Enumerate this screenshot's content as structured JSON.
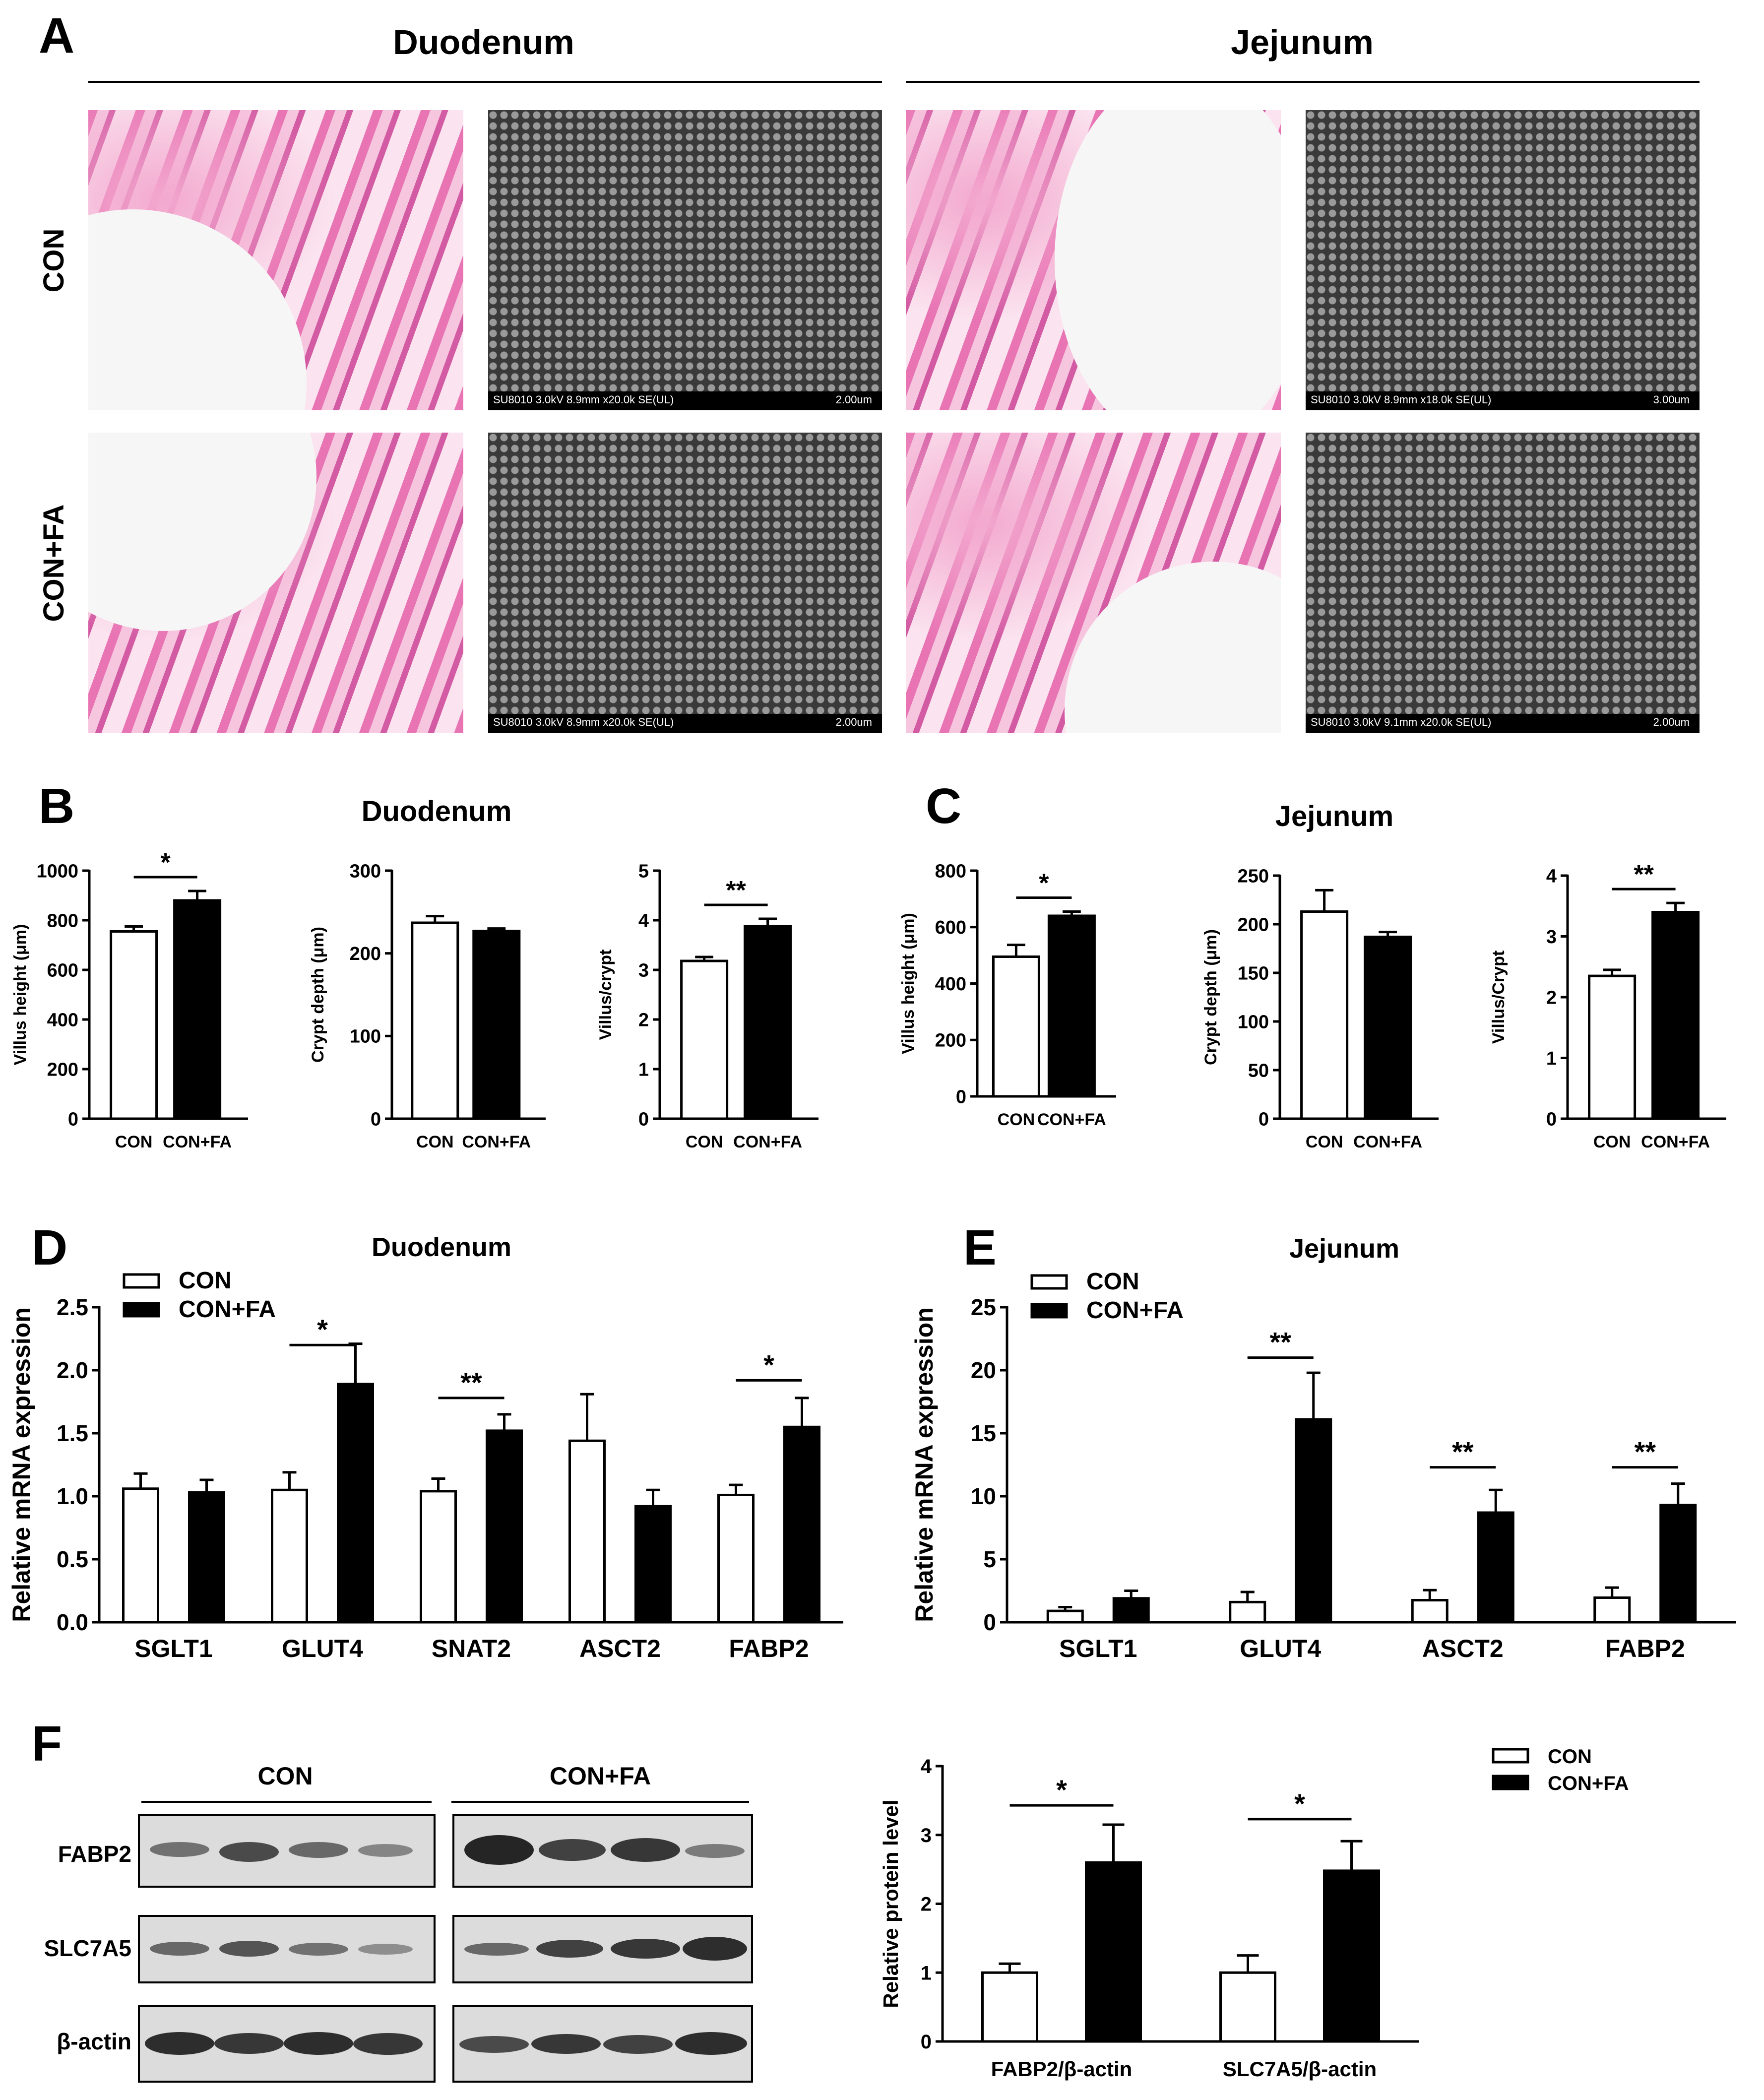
{
  "panel_letters": [
    "A",
    "B",
    "C",
    "D",
    "E",
    "F"
  ],
  "panelA": {
    "col_headers": [
      "Duodenum",
      "Jejunum"
    ],
    "row_labels": [
      "CON",
      "CON+FA"
    ],
    "sem_labels": [
      {
        "info": "SU8010 3.0kV 8.9mm x20.0k SE(UL)",
        "scale": "2.00um"
      },
      {
        "info": "SU8010 3.0kV 8.9mm x18.0k SE(UL)",
        "scale": "3.00um"
      },
      {
        "info": "SU8010 3.0kV 8.9mm x20.0k SE(UL)",
        "scale": "2.00um"
      },
      {
        "info": "SU8010 3.0kV 9.1mm x20.0k SE(UL)",
        "scale": "2.00um"
      }
    ]
  },
  "panelB_title": "Duodenum",
  "panelC_title": "Jejunum",
  "panelD_title": "Duodenum",
  "panelE_title": "Jejunum",
  "panelF": {
    "group_labels": [
      "CON",
      "CON+FA"
    ],
    "row_labels": [
      "FABP2",
      "SLC7A5",
      "β-actin"
    ]
  },
  "colors": {
    "con_fill": "#ffffff",
    "fa_fill": "#000000",
    "stroke": "#000000"
  },
  "chart_data": [
    {
      "id": "B1",
      "type": "bar",
      "categories": [
        "CON",
        "CON+FA"
      ],
      "values": [
        755,
        880
      ],
      "errors": [
        20,
        38
      ],
      "ylabel": "Villus height (μm)",
      "ylim": [
        0,
        1000
      ],
      "yticks": [
        0,
        200,
        400,
        600,
        800,
        1000
      ],
      "sig": [
        {
          "from": 0,
          "to": 1,
          "label": "*"
        }
      ]
    },
    {
      "id": "B2",
      "type": "bar",
      "categories": [
        "CON",
        "CON+FA"
      ],
      "values": [
        237,
        227
      ],
      "errors": [
        8,
        3
      ],
      "ylabel": "Crypt depth (μm)",
      "ylim": [
        0,
        300
      ],
      "yticks": [
        0,
        100,
        200,
        300
      ],
      "sig": []
    },
    {
      "id": "B3",
      "type": "bar",
      "categories": [
        "CON",
        "CON+FA"
      ],
      "values": [
        3.18,
        3.88
      ],
      "errors": [
        0.08,
        0.15
      ],
      "ylabel": "Villus/crypt",
      "ylim": [
        0,
        5
      ],
      "yticks": [
        0,
        1,
        2,
        3,
        4,
        5
      ],
      "sig": [
        {
          "from": 0,
          "to": 1,
          "label": "**"
        }
      ]
    },
    {
      "id": "C1",
      "type": "bar",
      "categories": [
        "CON",
        "CON+FA"
      ],
      "values": [
        495,
        640
      ],
      "errors": [
        42,
        15
      ],
      "ylabel": "Villus height (μm)",
      "ylim": [
        0,
        800
      ],
      "yticks": [
        0,
        200,
        400,
        600,
        800
      ],
      "sig": [
        {
          "from": 0,
          "to": 1,
          "label": "*"
        }
      ]
    },
    {
      "id": "C2",
      "type": "bar",
      "categories": [
        "CON",
        "CON+FA"
      ],
      "values": [
        213,
        187
      ],
      "errors": [
        22,
        5
      ],
      "ylabel": "Crypt depth (μm)",
      "ylim": [
        0,
        250
      ],
      "yticks": [
        0,
        50,
        100,
        150,
        200,
        250
      ],
      "sig": []
    },
    {
      "id": "C3",
      "type": "bar",
      "categories": [
        "CON",
        "CON+FA"
      ],
      "values": [
        2.35,
        3.4
      ],
      "errors": [
        0.1,
        0.15
      ],
      "ylabel": "Villus/Crypt",
      "ylim": [
        0,
        4
      ],
      "yticks": [
        0,
        1,
        2,
        3,
        4
      ],
      "sig": [
        {
          "from": 0,
          "to": 1,
          "label": "**"
        }
      ]
    },
    {
      "id": "D",
      "type": "bar",
      "categories": [
        "SGLT1",
        "GLUT4",
        "SNAT2",
        "ASCT2",
        "FABP2"
      ],
      "series": [
        {
          "name": "CON",
          "values": [
            1.06,
            1.05,
            1.04,
            1.44,
            1.01
          ],
          "errors": [
            0.12,
            0.14,
            0.1,
            0.37,
            0.08
          ]
        },
        {
          "name": "CON+FA",
          "values": [
            1.03,
            1.89,
            1.52,
            0.92,
            1.55
          ],
          "errors": [
            0.1,
            0.32,
            0.13,
            0.13,
            0.23
          ]
        }
      ],
      "ylabel": "Relative mRNA expression",
      "ylim": [
        0,
        2.5
      ],
      "yticks": [
        "0.0",
        "0.5",
        "1.0",
        "1.5",
        "2.0",
        "2.5"
      ],
      "sig": [
        {
          "group": 1,
          "label": "*",
          "y": 2.2
        },
        {
          "group": 2,
          "label": "**",
          "y": 1.78
        },
        {
          "group": 4,
          "label": "*",
          "y": 1.92
        }
      ]
    },
    {
      "id": "E",
      "type": "bar",
      "categories": [
        "SGLT1",
        "GLUT4",
        "ASCT2",
        "FABP2"
      ],
      "series": [
        {
          "name": "CON",
          "values": [
            0.9,
            1.6,
            1.75,
            1.95
          ],
          "errors": [
            0.3,
            0.8,
            0.8,
            0.8
          ]
        },
        {
          "name": "CON+FA",
          "values": [
            1.9,
            16.1,
            8.7,
            9.3
          ],
          "errors": [
            0.6,
            3.7,
            1.8,
            1.7
          ]
        }
      ],
      "ylabel": "Relative mRNA expression",
      "ylim": [
        0,
        25
      ],
      "yticks": [
        "0",
        "5",
        "10",
        "15",
        "20",
        "25"
      ],
      "sig": [
        {
          "group": 1,
          "label": "**",
          "y": 21
        },
        {
          "group": 2,
          "label": "**",
          "y": 12.3
        },
        {
          "group": 3,
          "label": "**",
          "y": 12.3
        }
      ]
    },
    {
      "id": "F",
      "type": "bar",
      "categories": [
        "FABP2/β-actin",
        "SLC7A5/β-actin"
      ],
      "series": [
        {
          "name": "CON",
          "values": [
            1.0,
            1.0
          ],
          "errors": [
            0.13,
            0.25
          ]
        },
        {
          "name": "CON+FA",
          "values": [
            2.6,
            2.48
          ],
          "errors": [
            0.55,
            0.43
          ]
        }
      ],
      "ylabel": "Relative protein level",
      "ylim": [
        0,
        4
      ],
      "yticks": [
        "0",
        "1",
        "2",
        "3",
        "4"
      ],
      "sig": [
        {
          "group": 0,
          "label": "*",
          "y": 3.43
        },
        {
          "group": 1,
          "label": "*",
          "y": 3.23
        }
      ]
    }
  ]
}
